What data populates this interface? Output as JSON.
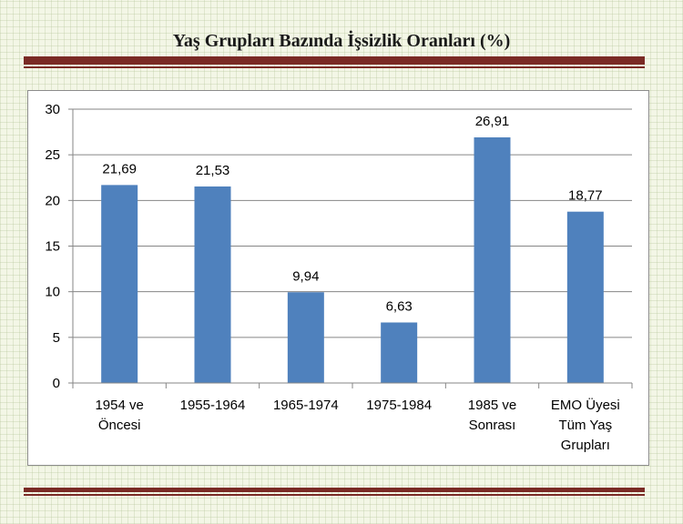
{
  "slide": {
    "title": "Yaş Grupları Bazında İşsizlik Oranları (%)",
    "accent_color": "#7a2a25"
  },
  "chart_data": {
    "type": "bar",
    "title": "",
    "xlabel": "",
    "ylabel": "",
    "categories": [
      [
        "1954 ve",
        "Öncesi"
      ],
      [
        "1955-1964"
      ],
      [
        "1965-1974"
      ],
      [
        "1975-1984"
      ],
      [
        "1985 ve",
        "Sonrası"
      ],
      [
        "EMO Üyesi",
        "Tüm Yaş",
        "Grupları"
      ]
    ],
    "values": [
      21.69,
      21.53,
      9.94,
      6.63,
      26.91,
      18.77
    ],
    "data_labels": [
      "21,69",
      "21,53",
      "9,94",
      "6,63",
      "26,91",
      "18,77"
    ],
    "ylim": [
      0,
      30
    ],
    "yticks": [
      0,
      5,
      10,
      15,
      20,
      25,
      30
    ],
    "grid": true,
    "legend": "none",
    "bar_color": "#4f81bd",
    "grid_color": "#868686"
  }
}
